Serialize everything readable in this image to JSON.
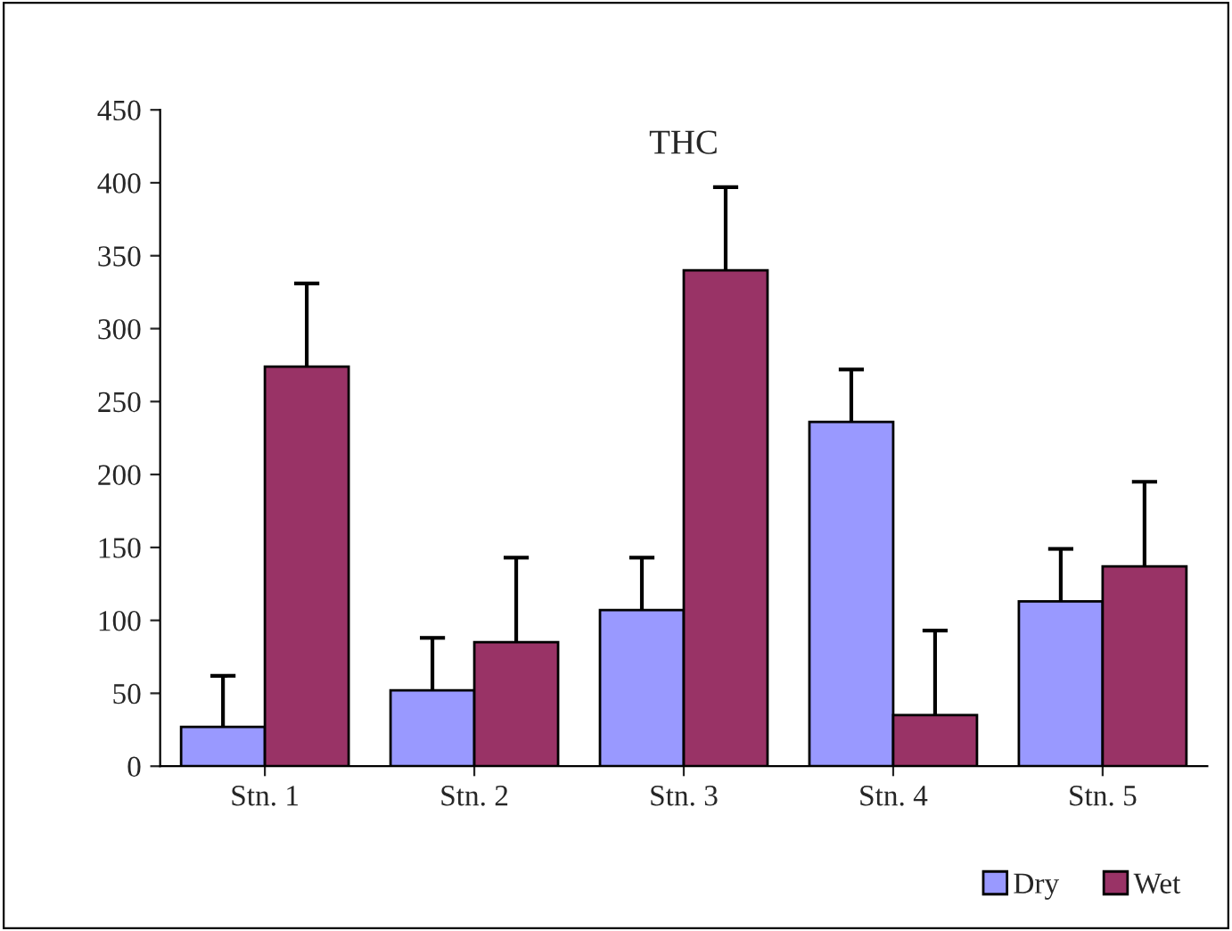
{
  "chart_data": {
    "type": "bar",
    "title": "THC",
    "categories": [
      "Stn. 1",
      "Stn. 2",
      "Stn. 3",
      "Stn. 4",
      "Stn. 5"
    ],
    "series": [
      {
        "name": "Dry",
        "color": "#9999ff",
        "values": [
          27,
          52,
          107,
          236,
          113
        ],
        "errors": [
          [
            27,
            62
          ],
          [
            52,
            88
          ],
          [
            107,
            143
          ],
          [
            236,
            272
          ],
          [
            113,
            149
          ]
        ]
      },
      {
        "name": "Wet",
        "color": "#993366",
        "values": [
          274,
          85,
          340,
          35,
          137
        ],
        "errors": [
          [
            274,
            331
          ],
          [
            85,
            143
          ],
          [
            340,
            397
          ],
          [
            35,
            93
          ],
          [
            137,
            195
          ]
        ]
      }
    ],
    "ylim": [
      0,
      450
    ],
    "yticks": [
      0,
      50,
      100,
      150,
      200,
      250,
      300,
      350,
      400,
      450
    ],
    "grid": false,
    "legend": "bottom right"
  }
}
